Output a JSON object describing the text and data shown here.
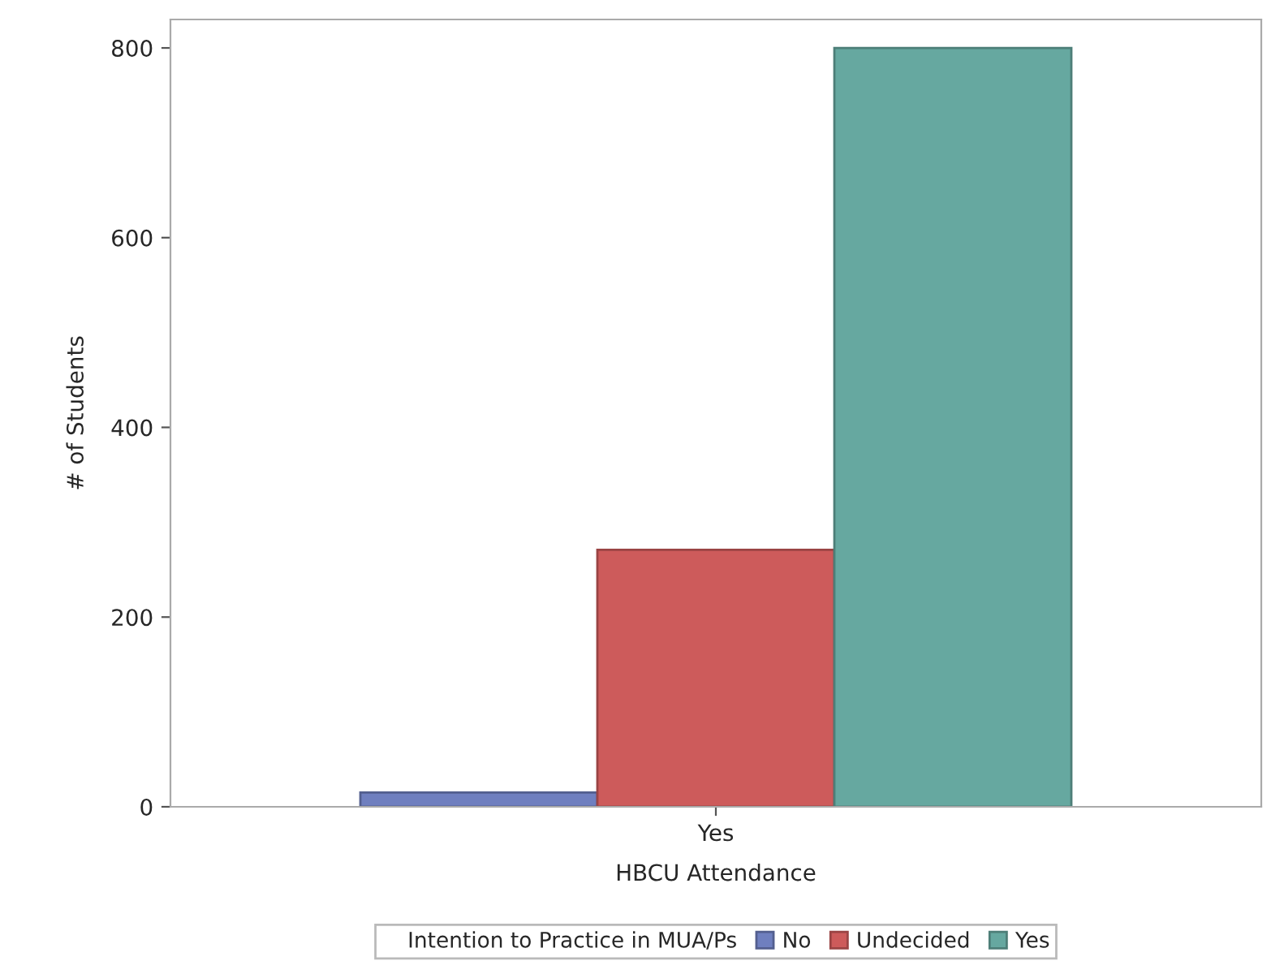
{
  "chart_data": {
    "type": "bar",
    "xlabel": "HBCU Attendance",
    "ylabel": "# of Students",
    "legend_title": "Intention to Practice in MUA/Ps",
    "categories": [
      "Yes"
    ],
    "series": [
      {
        "name": "No",
        "color": "#6f7fbf",
        "values": [
          15
        ]
      },
      {
        "name": "Undecided",
        "color": "#cd5b5b",
        "values": [
          271
        ]
      },
      {
        "name": "Yes",
        "color": "#66a8a0",
        "values": [
          800
        ]
      }
    ],
    "ylim": [
      0,
      830
    ],
    "yticks": [
      0,
      200,
      400,
      600,
      800
    ],
    "grid": false,
    "legend": "bottom"
  }
}
